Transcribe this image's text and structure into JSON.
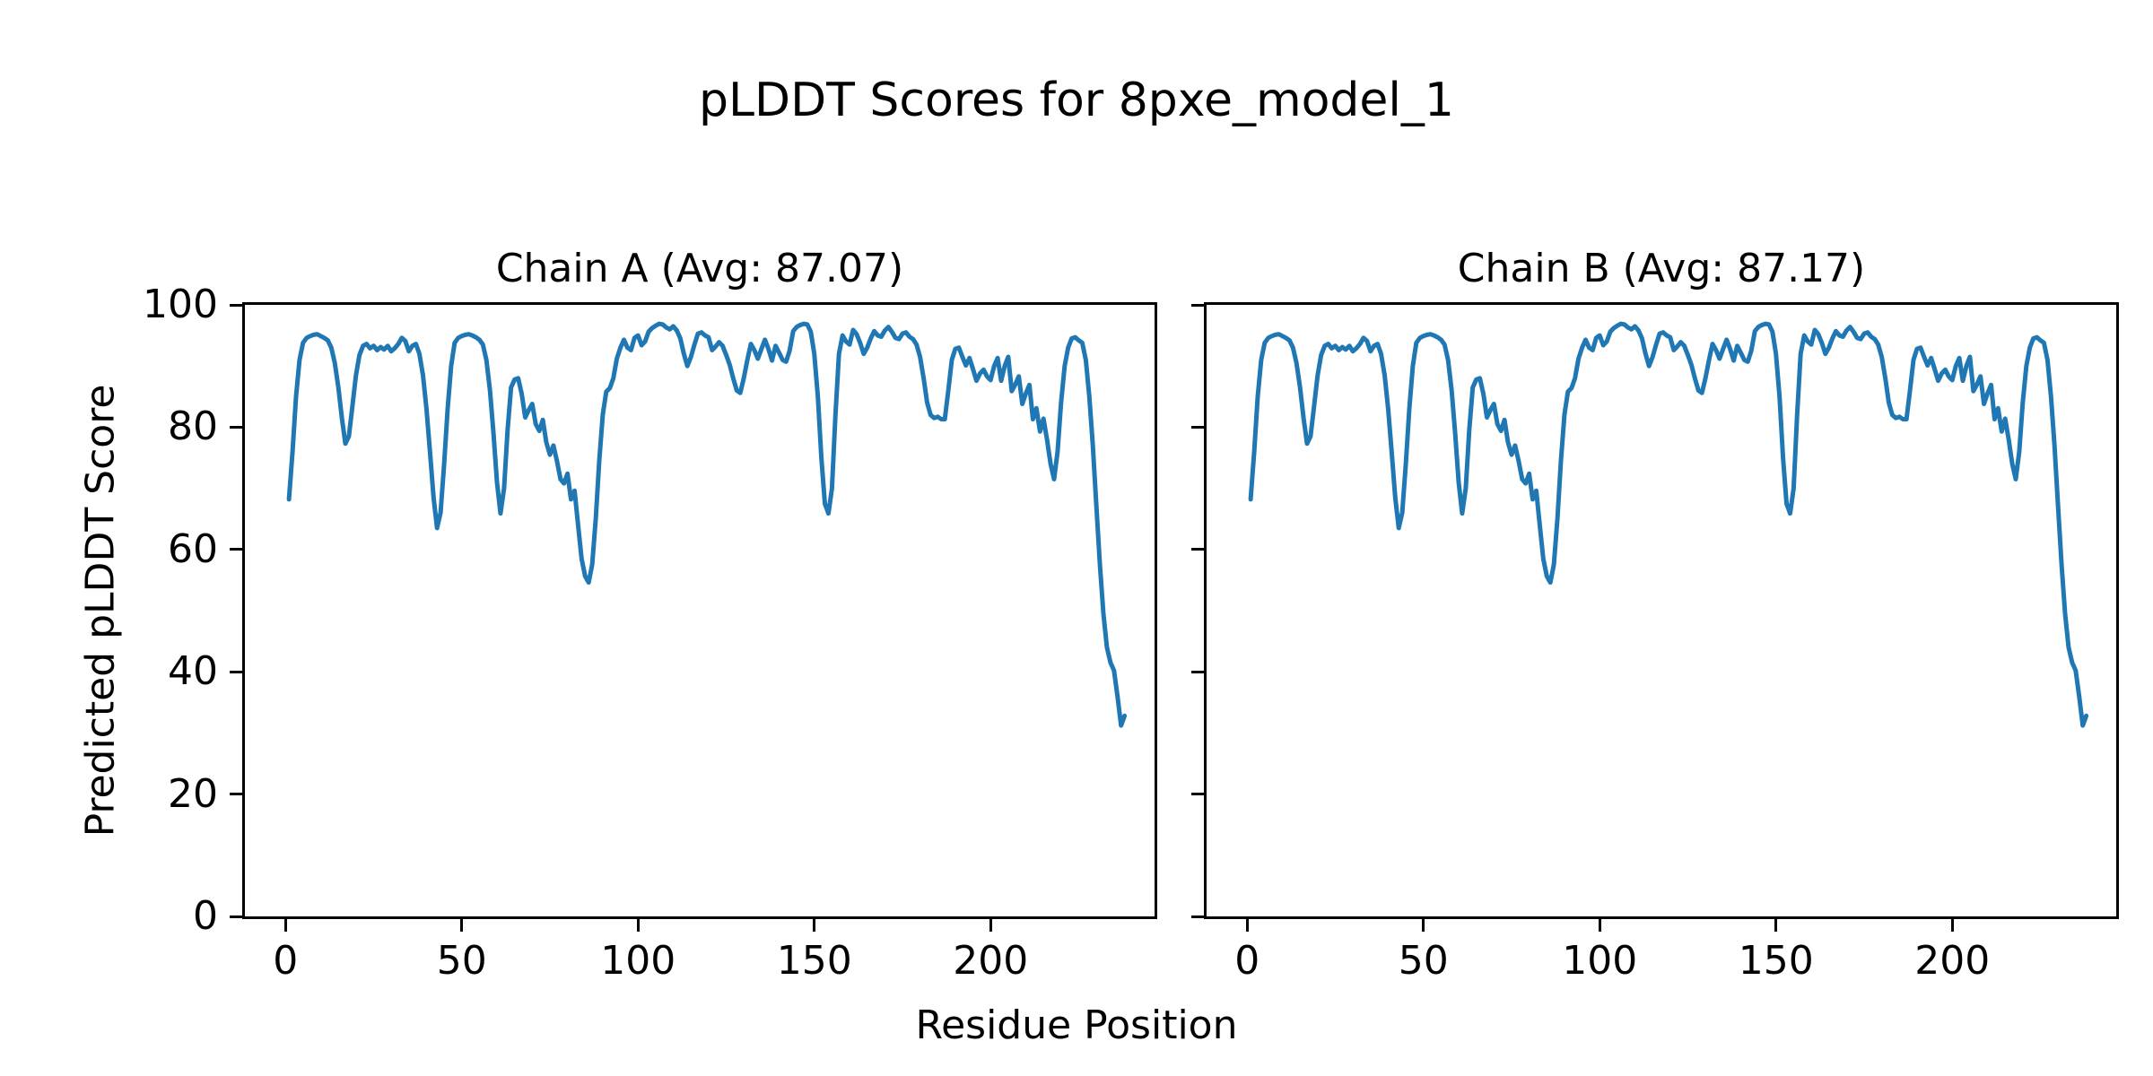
{
  "figure": {
    "title": "pLDDT Scores for 8pxe_model_1",
    "xlabel": "Residue Position",
    "ylabel": "Predicted pLDDT Score"
  },
  "chart_data": [
    {
      "type": "line",
      "title": "Chain A (Avg: 87.07)",
      "series_name": "Chain A",
      "avg_plddt": 87.07,
      "line_color": "#1f77b4",
      "grid": false,
      "legend": false,
      "x_start": 1,
      "xlim": [
        -11.5,
        246.5
      ],
      "ylim": [
        0,
        100
      ],
      "xticks": [
        0,
        50,
        100,
        150,
        200
      ],
      "yticks": [
        0,
        20,
        40,
        60,
        80,
        100
      ],
      "y_tick_labels_visible": true,
      "values": [
        68.2,
        76.0,
        85.0,
        91.0,
        93.8,
        94.6,
        94.9,
        95.1,
        95.2,
        94.9,
        94.6,
        94.2,
        93.0,
        90.5,
        86.5,
        81.5,
        77.3,
        78.5,
        83.5,
        88.5,
        91.8,
        93.3,
        93.6,
        92.9,
        93.3,
        92.6,
        93.1,
        92.7,
        93.3,
        92.4,
        92.9,
        93.6,
        94.6,
        94.1,
        92.4,
        93.3,
        93.6,
        92.0,
        88.5,
        83.0,
        76.0,
        68.5,
        63.5,
        66.0,
        74.0,
        83.0,
        90.0,
        93.8,
        94.6,
        94.9,
        95.1,
        95.2,
        95.0,
        94.7,
        94.3,
        93.5,
        91.0,
        86.0,
        79.0,
        71.0,
        65.9,
        70.0,
        79.5,
        86.5,
        87.8,
        88.0,
        85.5,
        81.6,
        82.8,
        83.8,
        80.5,
        79.4,
        81.2,
        77.5,
        75.5,
        77.0,
        74.5,
        71.5,
        70.8,
        72.4,
        68.2,
        69.6,
        64.0,
        58.5,
        55.6,
        54.6,
        57.5,
        65.0,
        74.5,
        82.0,
        85.8,
        86.4,
        88.0,
        91.2,
        93.0,
        94.3,
        93.0,
        92.6,
        94.6,
        95.0,
        93.4,
        94.0,
        95.6,
        96.2,
        96.6,
        96.9,
        96.8,
        96.3,
        96.0,
        96.5,
        95.8,
        94.5,
        92.0,
        90.0,
        91.5,
        93.5,
        95.3,
        95.5,
        95.0,
        94.7,
        92.6,
        93.2,
        93.9,
        93.3,
        91.8,
        90.2,
        88.0,
        86.0,
        85.6,
        88.0,
        91.0,
        93.6,
        92.6,
        91.2,
        92.8,
        94.3,
        92.8,
        90.9,
        93.3,
        92.2,
        91.0,
        90.7,
        92.5,
        95.7,
        96.4,
        96.7,
        96.9,
        96.8,
        95.6,
        92.0,
        85.0,
        75.0,
        67.5,
        65.9,
        70.0,
        82.0,
        92.0,
        95.0,
        94.0,
        93.5,
        95.9,
        95.2,
        93.8,
        92.0,
        93.0,
        94.5,
        95.7,
        95.0,
        94.8,
        95.8,
        96.4,
        95.6,
        94.6,
        94.4,
        95.3,
        95.5,
        94.8,
        94.4,
        93.5,
        91.5,
        88.0,
        84.0,
        82.0,
        81.5,
        81.7,
        81.3,
        81.3,
        86.0,
        91.0,
        92.8,
        93.0,
        91.5,
        90.1,
        91.3,
        89.5,
        87.6,
        88.8,
        89.4,
        88.3,
        87.7,
        90.0,
        91.3,
        87.6,
        90.0,
        91.5,
        85.9,
        87.0,
        88.3,
        83.8,
        85.5,
        86.9,
        81.3,
        83.1,
        79.3,
        81.4,
        78.0,
        74.0,
        71.5,
        76.0,
        84.0,
        90.0,
        93.0,
        94.5,
        94.7,
        94.2,
        93.8,
        91.0,
        85.0,
        77.0,
        67.0,
        57.5,
        49.5,
        44.0,
        41.5,
        40.2,
        36.0,
        31.2,
        32.8
      ]
    },
    {
      "type": "line",
      "title": "Chain B (Avg: 87.17)",
      "series_name": "Chain B",
      "avg_plddt": 87.17,
      "line_color": "#1f77b4",
      "grid": false,
      "legend": false,
      "x_start": 1,
      "xlim": [
        -11.5,
        246.5
      ],
      "ylim": [
        0,
        100
      ],
      "xticks": [
        0,
        50,
        100,
        150,
        200
      ],
      "yticks": [
        0,
        20,
        40,
        60,
        80,
        100
      ],
      "y_tick_labels_visible": false,
      "values": [
        68.2,
        76.0,
        85.0,
        91.0,
        93.8,
        94.6,
        94.9,
        95.1,
        95.2,
        94.9,
        94.6,
        94.2,
        93.0,
        90.5,
        86.5,
        81.5,
        77.3,
        78.5,
        83.5,
        88.5,
        91.8,
        93.3,
        93.6,
        92.9,
        93.3,
        92.6,
        93.1,
        92.7,
        93.3,
        92.4,
        92.9,
        93.6,
        94.6,
        94.1,
        92.4,
        93.3,
        93.6,
        92.0,
        88.5,
        83.0,
        76.0,
        68.5,
        63.5,
        66.0,
        74.0,
        83.0,
        90.0,
        93.8,
        94.6,
        94.9,
        95.1,
        95.2,
        95.0,
        94.7,
        94.3,
        93.5,
        91.0,
        86.0,
        79.0,
        71.0,
        65.9,
        70.0,
        79.5,
        86.5,
        87.8,
        88.0,
        85.5,
        81.6,
        82.8,
        83.8,
        80.5,
        79.4,
        81.2,
        77.5,
        75.5,
        77.0,
        74.5,
        71.5,
        70.8,
        72.4,
        68.2,
        69.6,
        64.0,
        58.5,
        55.6,
        54.6,
        57.5,
        65.0,
        74.5,
        82.0,
        85.8,
        86.4,
        88.0,
        91.2,
        93.0,
        94.3,
        93.0,
        92.6,
        94.6,
        95.0,
        93.4,
        94.0,
        95.6,
        96.2,
        96.6,
        96.9,
        96.8,
        96.3,
        96.0,
        96.5,
        95.8,
        94.5,
        92.0,
        90.0,
        91.5,
        93.5,
        95.3,
        95.5,
        95.0,
        94.7,
        92.6,
        93.2,
        93.9,
        93.3,
        91.8,
        90.2,
        88.0,
        86.0,
        85.6,
        88.0,
        91.0,
        93.6,
        92.6,
        91.2,
        92.8,
        94.3,
        92.8,
        90.9,
        93.3,
        92.2,
        91.0,
        90.7,
        92.5,
        95.7,
        96.4,
        96.7,
        96.9,
        96.8,
        95.6,
        92.0,
        85.0,
        75.0,
        67.5,
        65.9,
        70.0,
        82.0,
        92.0,
        95.0,
        94.0,
        93.5,
        95.9,
        95.2,
        93.8,
        92.0,
        93.0,
        94.5,
        95.7,
        95.0,
        94.8,
        95.8,
        96.4,
        95.6,
        94.6,
        94.4,
        95.3,
        95.5,
        94.8,
        94.4,
        93.5,
        91.5,
        88.0,
        84.0,
        82.0,
        81.5,
        81.7,
        81.3,
        81.3,
        86.0,
        91.0,
        92.8,
        93.0,
        91.5,
        90.1,
        91.3,
        89.5,
        87.6,
        88.8,
        89.4,
        88.3,
        87.7,
        90.0,
        91.3,
        87.6,
        90.0,
        91.5,
        85.9,
        87.0,
        88.3,
        83.8,
        85.5,
        86.9,
        81.3,
        83.1,
        79.3,
        81.4,
        78.0,
        74.0,
        71.5,
        76.0,
        84.0,
        90.0,
        93.0,
        94.5,
        94.7,
        94.2,
        93.8,
        91.0,
        85.0,
        77.0,
        67.0,
        57.5,
        49.5,
        44.0,
        41.5,
        40.2,
        36.0,
        31.2,
        32.8
      ]
    }
  ]
}
